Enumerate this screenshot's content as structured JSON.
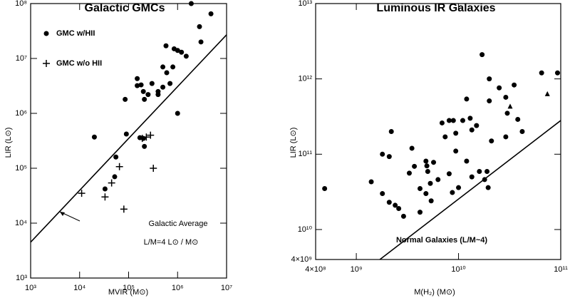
{
  "chart_data": [
    {
      "type": "scatter",
      "title": "Galactic GMCs",
      "log_x": true,
      "log_y": true,
      "x_label": "MVIR (M⊙)",
      "y_label": "LIR (L⊙)",
      "xlim": [
        1000,
        10000000
      ],
      "ylim": [
        1000,
        100000000
      ],
      "xticks": [
        {
          "value": 1000,
          "label": "10³"
        },
        {
          "value": 10000,
          "label": "10⁴"
        },
        {
          "value": 100000,
          "label": "10⁵"
        },
        {
          "value": 1000000,
          "label": "10⁶"
        },
        {
          "value": 10000000,
          "label": "10⁷"
        }
      ],
      "yticks": [
        {
          "value": 1000,
          "label": "10³"
        },
        {
          "value": 10000,
          "label": "10⁴"
        },
        {
          "value": 100000,
          "label": "10⁵"
        },
        {
          "value": 1000000,
          "label": "10⁶"
        },
        {
          "value": 10000000,
          "label": "10⁷"
        },
        {
          "value": 100000000,
          "label": "10⁸"
        }
      ],
      "legend": "upper left",
      "annotations": [
        "Galactic Average",
        "L/M=4 L⊙ / M⊙"
      ],
      "series": [
        {
          "name": "GMC w/HII",
          "marker": "circle",
          "color": "#000000",
          "x": [
            1900000,
            4800000,
            2800000,
            3000000,
            580000,
            1000000,
            1200000,
            850000,
            1500000,
            500000,
            600000,
            800000,
            700000,
            400000,
            500000,
            300000,
            150000,
            150000,
            180000,
            200000,
            250000,
            210000,
            85000,
            400000,
            1000000,
            90000,
            170000,
            200000,
            210000,
            20000,
            55000,
            52000,
            33000
          ],
          "values": [
            100000000,
            65000000,
            38000000,
            20000000,
            17000000,
            14000000,
            13000000,
            15000000,
            11000000,
            7000000,
            5500000,
            7000000,
            3500000,
            2500000,
            3000000,
            3500000,
            4300000,
            3200000,
            3300000,
            2500000,
            2200000,
            1800000,
            1800000,
            2200000,
            1000000,
            420000,
            360000,
            350000,
            250000,
            370000,
            160000,
            70000,
            42000
          ]
        },
        {
          "name": "GMC w/o HII",
          "marker": "plus",
          "color": "#000000",
          "x": [
            11000,
            33000,
            45000,
            65000,
            280000,
            230000,
            320000,
            80000,
            190000
          ],
          "values": [
            35000,
            30000,
            54000,
            107000,
            400000,
            370000,
            100000,
            18000,
            350000
          ]
        },
        {
          "marker": "line",
          "color": "#000000",
          "x": [
            1000,
            10000000
          ],
          "values": [
            4500,
            27000000
          ]
        }
      ]
    },
    {
      "type": "scatter",
      "title": "Luminous IR Galaxies",
      "log_x": true,
      "log_y": true,
      "x_label": "M(H₂) (M⊙)",
      "y_label": "LIR (L⊙)",
      "xlim": [
        400000000,
        100000000000
      ],
      "ylim": [
        4000000000,
        10000000000000
      ],
      "xticks": [
        {
          "value": 400000000,
          "label": "4×10⁸"
        },
        {
          "value": 1000000000,
          "label": "10⁹"
        },
        {
          "value": 10000000000,
          "label": "10¹⁰"
        },
        {
          "value": 100000000000,
          "label": "10¹¹"
        }
      ],
      "yticks": [
        {
          "value": 4000000000,
          "label": "4×10⁹"
        },
        {
          "value": 10000000000,
          "label": "10¹⁰"
        },
        {
          "value": 100000000000,
          "label": "10¹¹"
        },
        {
          "value": 1000000000000,
          "label": "10¹²"
        },
        {
          "value": 10000000000000,
          "label": "10¹³"
        }
      ],
      "annotations": [
        "Normal Galaxies (L/M~4)"
      ],
      "series": [
        {
          "marker": "circle",
          "color": "#000000",
          "x": [
            490000000,
            1400000000,
            1800000000,
            2100000000,
            2200000000,
            1800000000,
            2100000000,
            2400000000,
            2600000000,
            2900000000,
            3300000000,
            3500000000,
            3700000000,
            4200000000,
            4200000000,
            4800000000,
            5000000000,
            5300000000,
            4800000000,
            5400000000,
            4900000000,
            5700000000,
            6900000000,
            7400000000,
            8100000000,
            8900000000,
            9400000000,
            11000000000,
            12000000000,
            13000000000,
            13500000000,
            15000000000,
            17000000000,
            20000000000,
            20000000000,
            21000000000,
            25000000000,
            29000000000,
            30000000000,
            35000000000,
            38000000000,
            42000000000,
            65000000000,
            93000000000,
            29000000000,
            9400000000,
            12000000000,
            8100000000,
            10000000000,
            8700000000,
            13500000000,
            19000000000,
            18000000000,
            16000000000,
            19500000000,
            6300000000
          ],
          "values": [
            35000000000,
            43000000000,
            100000000000,
            93000000000,
            200000000000,
            30000000000,
            23000000000,
            21000000000,
            19000000000,
            15000000000,
            56000000000,
            120000000000,
            69000000000,
            35000000000,
            17000000000,
            81000000000,
            59000000000,
            41000000000,
            30000000000,
            24000000000,
            70000000000,
            78000000000,
            260000000000,
            170000000000,
            280000000000,
            280000000000,
            190000000000,
            280000000000,
            540000000000,
            300000000000,
            210000000000,
            240000000000,
            2100000000000,
            1000000000000,
            510000000000,
            150000000000,
            760000000000,
            570000000000,
            350000000000,
            830000000000,
            290000000000,
            200000000000,
            1200000000000,
            1200000000000,
            170000000000,
            110000000000,
            81000000000,
            55000000000,
            36000000000,
            31000000000,
            50000000000,
            59000000000,
            46000000000,
            59000000000,
            36000000000,
            46000000000
          ]
        },
        {
          "marker": "triangle",
          "color": "#000000",
          "x": [
            32000000000,
            74000000000
          ],
          "values": [
            430000000000,
            630000000000
          ]
        },
        {
          "marker": "line",
          "color": "#000000",
          "x": [
            1700000000,
            100000000000
          ],
          "values": [
            4000000000,
            280000000000
          ]
        }
      ]
    }
  ]
}
